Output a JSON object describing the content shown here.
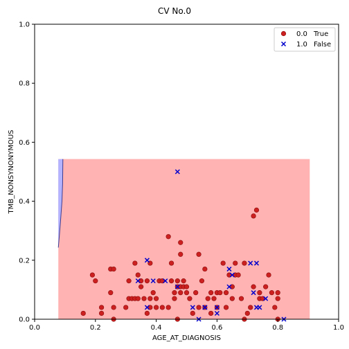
{
  "chart_data": {
    "type": "scatter",
    "title": "CV No.0",
    "xlabel": "AGE_AT_DIAGNOSIS",
    "ylabel": "TMB_NONSYNONYMOUS",
    "xlim": [
      0.0,
      1.0
    ],
    "ylim": [
      0.0,
      1.0
    ],
    "xticks": [
      "0.0",
      "0.2",
      "0.4",
      "0.6",
      "0.8",
      "1.0"
    ],
    "yticks": [
      "0.0",
      "0.2",
      "0.4",
      "0.6",
      "0.8",
      "1.0"
    ],
    "grid": false,
    "legend_position": "top-right",
    "decision_regions": {
      "x_range": [
        0.078,
        0.905
      ],
      "y_range": [
        0.0,
        0.543
      ],
      "background_class": "0.0",
      "background_color": "#ffb3b3",
      "minor_class": "1.0",
      "minor_color": "#b3b3ff",
      "minor_boundary": [
        [
          0.078,
          0.543
        ],
        [
          0.093,
          0.543
        ],
        [
          0.092,
          0.46
        ],
        [
          0.09,
          0.4
        ],
        [
          0.085,
          0.33
        ],
        [
          0.081,
          0.28
        ],
        [
          0.078,
          0.243
        ]
      ]
    },
    "series": [
      {
        "name": "True",
        "class": "0.0",
        "label": "0.0",
        "legend_text": "True",
        "marker": "circle",
        "color": "#cc1f1f",
        "points": [
          [
            0.16,
            0.02
          ],
          [
            0.19,
            0.15
          ],
          [
            0.2,
            0.13
          ],
          [
            0.22,
            0.04
          ],
          [
            0.22,
            0.02
          ],
          [
            0.25,
            0.17
          ],
          [
            0.26,
            0.17
          ],
          [
            0.25,
            0.09
          ],
          [
            0.26,
            0.04
          ],
          [
            0.26,
            0.0
          ],
          [
            0.3,
            0.04
          ],
          [
            0.31,
            0.13
          ],
          [
            0.31,
            0.07
          ],
          [
            0.32,
            0.07
          ],
          [
            0.33,
            0.19
          ],
          [
            0.33,
            0.07
          ],
          [
            0.34,
            0.15
          ],
          [
            0.34,
            0.07
          ],
          [
            0.35,
            0.13
          ],
          [
            0.35,
            0.11
          ],
          [
            0.36,
            0.07
          ],
          [
            0.37,
            0.02
          ],
          [
            0.37,
            0.13
          ],
          [
            0.38,
            0.19
          ],
          [
            0.38,
            0.04
          ],
          [
            0.38,
            0.07
          ],
          [
            0.39,
            0.09
          ],
          [
            0.4,
            0.04
          ],
          [
            0.4,
            0.07
          ],
          [
            0.41,
            0.13
          ],
          [
            0.42,
            0.13
          ],
          [
            0.44,
            0.28
          ],
          [
            0.44,
            0.04
          ],
          [
            0.45,
            0.19
          ],
          [
            0.45,
            0.13
          ],
          [
            0.46,
            0.09
          ],
          [
            0.46,
            0.07
          ],
          [
            0.47,
            0.13
          ],
          [
            0.47,
            0.11
          ],
          [
            0.47,
            0.0
          ],
          [
            0.48,
            0.26
          ],
          [
            0.48,
            0.22
          ],
          [
            0.48,
            0.11
          ],
          [
            0.48,
            0.09
          ],
          [
            0.49,
            0.13
          ],
          [
            0.49,
            0.11
          ],
          [
            0.5,
            0.09
          ],
          [
            0.5,
            0.11
          ],
          [
            0.51,
            0.07
          ],
          [
            0.52,
            0.02
          ],
          [
            0.53,
            0.09
          ],
          [
            0.54,
            0.22
          ],
          [
            0.54,
            0.04
          ],
          [
            0.55,
            0.13
          ],
          [
            0.56,
            0.17
          ],
          [
            0.56,
            0.04
          ],
          [
            0.57,
            0.07
          ],
          [
            0.58,
            0.02
          ],
          [
            0.59,
            0.07
          ],
          [
            0.6,
            0.09
          ],
          [
            0.6,
            0.04
          ],
          [
            0.61,
            0.09
          ],
          [
            0.62,
            0.19
          ],
          [
            0.63,
            0.09
          ],
          [
            0.63,
            0.04
          ],
          [
            0.64,
            0.15
          ],
          [
            0.65,
            0.11
          ],
          [
            0.65,
            0.07
          ],
          [
            0.66,
            0.15
          ],
          [
            0.66,
            0.19
          ],
          [
            0.67,
            0.15
          ],
          [
            0.68,
            0.07
          ],
          [
            0.69,
            0.0
          ],
          [
            0.7,
            0.02
          ],
          [
            0.71,
            0.04
          ],
          [
            0.72,
            0.11
          ],
          [
            0.72,
            0.35
          ],
          [
            0.73,
            0.37
          ],
          [
            0.74,
            0.09
          ],
          [
            0.74,
            0.07
          ],
          [
            0.75,
            0.07
          ],
          [
            0.76,
            0.11
          ],
          [
            0.77,
            0.15
          ],
          [
            0.78,
            0.09
          ],
          [
            0.79,
            0.04
          ],
          [
            0.8,
            0.07
          ],
          [
            0.8,
            0.09
          ],
          [
            0.8,
            0.0
          ],
          [
            0.69,
            0.19
          ],
          [
            0.58,
            0.09
          ],
          [
            0.42,
            0.04
          ]
        ]
      },
      {
        "name": "False",
        "class": "1.0",
        "label": "1.0",
        "legend_text": "False",
        "marker": "x",
        "color": "#0000cc",
        "points": [
          [
            0.47,
            0.5
          ],
          [
            0.34,
            0.13
          ],
          [
            0.37,
            0.2
          ],
          [
            0.39,
            0.13
          ],
          [
            0.43,
            0.13
          ],
          [
            0.37,
            0.04
          ],
          [
            0.47,
            0.11
          ],
          [
            0.52,
            0.04
          ],
          [
            0.54,
            0.0
          ],
          [
            0.56,
            0.04
          ],
          [
            0.6,
            0.04
          ],
          [
            0.6,
            0.02
          ],
          [
            0.64,
            0.17
          ],
          [
            0.64,
            0.11
          ],
          [
            0.65,
            0.15
          ],
          [
            0.71,
            0.19
          ],
          [
            0.73,
            0.19
          ],
          [
            0.72,
            0.09
          ],
          [
            0.73,
            0.04
          ],
          [
            0.74,
            0.04
          ],
          [
            0.76,
            0.07
          ],
          [
            0.82,
            0.0
          ],
          [
            0.56,
            0.04
          ]
        ]
      }
    ]
  }
}
